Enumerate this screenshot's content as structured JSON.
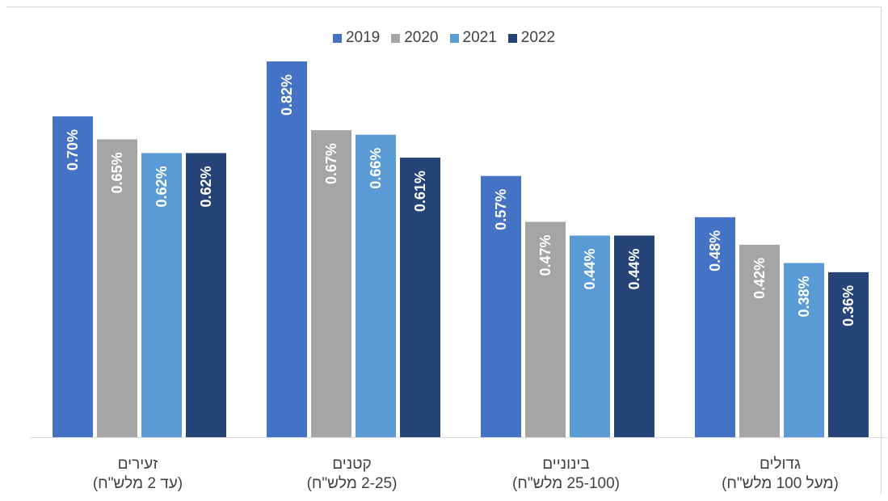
{
  "chart_data": {
    "type": "bar",
    "categories": [
      {
        "line1": "זעירים",
        "line2": "(עד 2 מלש\"ח)"
      },
      {
        "line1": "קטנים",
        "line2": "(2-25 מלש\"ח)"
      },
      {
        "line1": "בינוניים",
        "line2": "(25-100 מלש\"ח)"
      },
      {
        "line1": "גדולים",
        "line2": "(מעל 100 מלש\"ח)"
      }
    ],
    "series": [
      {
        "name": "2019",
        "color": "#4472C4",
        "values": [
          0.7,
          0.82,
          0.57,
          0.48
        ],
        "labels": [
          "0.70%",
          "0.82%",
          "0.57%",
          "0.48%"
        ]
      },
      {
        "name": "2020",
        "color": "#A5A5A5",
        "values": [
          0.65,
          0.67,
          0.47,
          0.42
        ],
        "labels": [
          "0.65%",
          "0.67%",
          "0.47%",
          "0.42%"
        ]
      },
      {
        "name": "2021",
        "color": "#5B9BD5",
        "values": [
          0.62,
          0.66,
          0.44,
          0.38
        ],
        "labels": [
          "0.62%",
          "0.66%",
          "0.44%",
          "0.38%"
        ]
      },
      {
        "name": "2022",
        "color": "#264478",
        "values": [
          0.62,
          0.61,
          0.44,
          0.36
        ],
        "labels": [
          "0.62%",
          "0.61%",
          "0.44%",
          "0.36%"
        ]
      }
    ],
    "ylim": [
      0,
      0.9
    ],
    "legend_position": "top",
    "grid": false
  }
}
